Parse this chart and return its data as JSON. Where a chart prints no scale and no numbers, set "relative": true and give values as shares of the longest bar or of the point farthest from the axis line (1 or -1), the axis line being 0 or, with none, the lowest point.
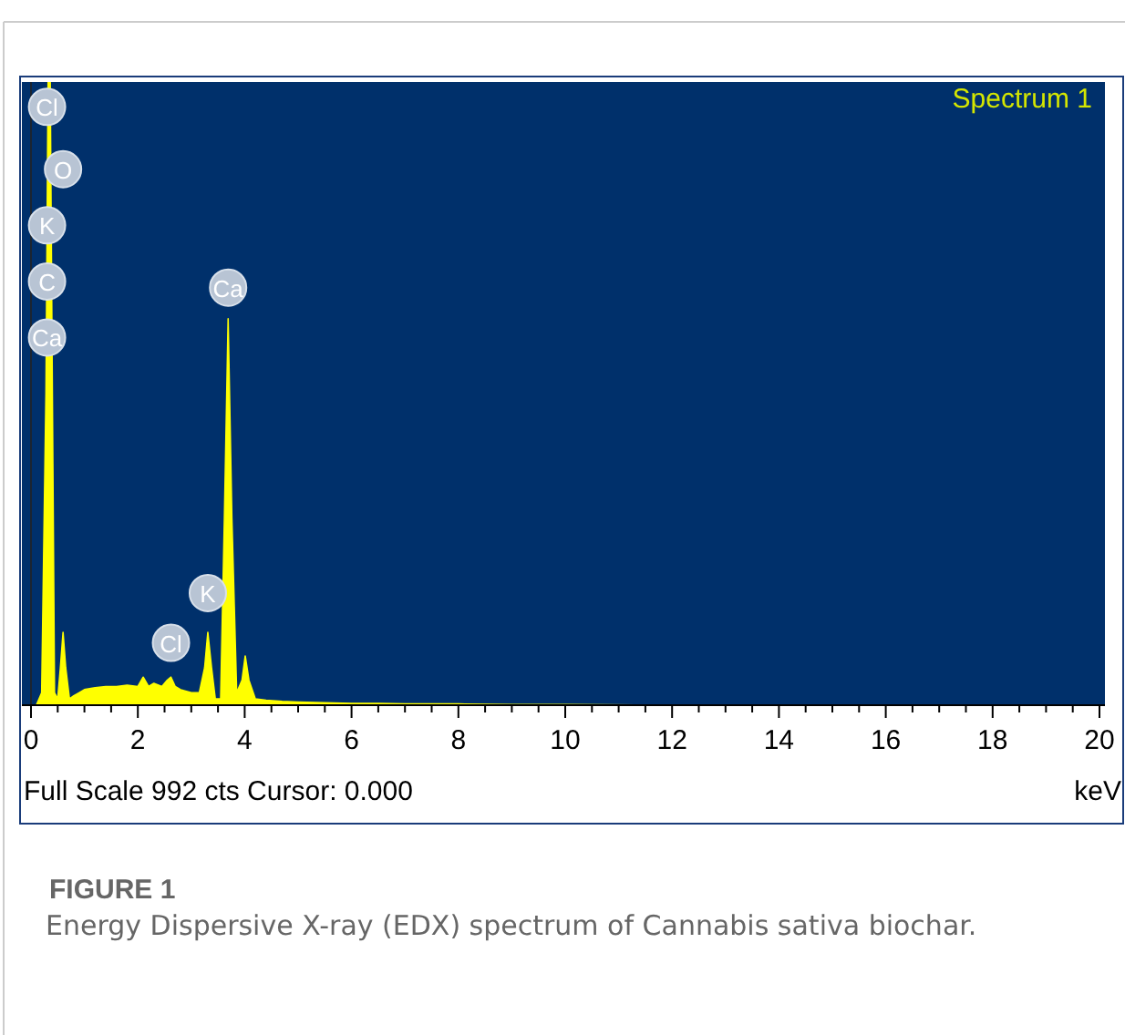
{
  "chart_data": {
    "type": "area",
    "title": "FIGURE 1",
    "subtitle": "Energy Dispersive X-ray (EDX) spectrum of Cannabis sativa biochar.",
    "xlabel": "keV",
    "relative": true,
    "legend": "top right",
    "grid": false,
    "x": [
      0,
      0.1,
      0.2,
      0.28,
      0.32,
      0.36,
      0.4,
      0.44,
      0.5,
      0.55,
      0.6,
      0.65,
      0.72,
      0.8,
      0.9,
      1.0,
      1.2,
      1.4,
      1.6,
      1.8,
      2.0,
      2.1,
      2.2,
      2.3,
      2.45,
      2.55,
      2.62,
      2.7,
      2.8,
      3.0,
      3.15,
      3.25,
      3.31,
      3.38,
      3.45,
      3.55,
      3.62,
      3.69,
      3.76,
      3.85,
      3.95,
      4.01,
      4.08,
      4.2,
      4.4,
      4.7,
      5.0,
      5.5,
      6,
      6.5,
      7,
      8,
      9,
      10,
      12,
      14,
      16,
      18,
      20
    ],
    "series": [
      {
        "name": "Spectrum 1",
        "color": "#ffff00",
        "values": [
          0,
          0,
          0.02,
          0.5,
          1,
          1,
          0.5,
          0.02,
          0.01,
          0.06,
          0.117,
          0.06,
          0.01,
          0.015,
          0.02,
          0.025,
          0.028,
          0.03,
          0.03,
          0.032,
          0.03,
          0.045,
          0.03,
          0.035,
          0.03,
          0.04,
          0.045,
          0.03,
          0.025,
          0.02,
          0.02,
          0.06,
          0.117,
          0.06,
          0.01,
          0.01,
          0.3,
          0.62,
          0.3,
          0.02,
          0.04,
          0.079,
          0.04,
          0.01,
          0.008,
          0.006,
          0.005,
          0.004,
          0.003,
          0.003,
          0.002,
          0.002,
          0.001,
          0.001,
          0,
          0,
          0,
          0,
          0
        ]
      }
    ],
    "xlim": [
      0,
      20
    ],
    "xticks": [
      0,
      {
        "value": 0.5,
        "label": null
      },
      {
        "value": 1,
        "label": null
      },
      {
        "value": 1.5,
        "label": null
      },
      2,
      {
        "value": 2.5,
        "label": null
      },
      {
        "value": 3,
        "label": null
      },
      {
        "value": 3.5,
        "label": null
      },
      4,
      {
        "value": 4.5,
        "label": null
      },
      {
        "value": 5,
        "label": null
      },
      {
        "value": 5.5,
        "label": null
      },
      6,
      {
        "value": 6.5,
        "label": null
      },
      {
        "value": 7,
        "label": null
      },
      {
        "value": 7.5,
        "label": null
      },
      8,
      {
        "value": 8.5,
        "label": null
      },
      {
        "value": 9,
        "label": null
      },
      {
        "value": 9.5,
        "label": null
      },
      10,
      {
        "value": 10.5,
        "label": null
      },
      {
        "value": 11,
        "label": null
      },
      {
        "value": 11.5,
        "label": null
      },
      12,
      {
        "value": 12.5,
        "label": null
      },
      {
        "value": 13,
        "label": null
      },
      {
        "value": 13.5,
        "label": null
      },
      14,
      {
        "value": 14.5,
        "label": null
      },
      {
        "value": 15,
        "label": null
      },
      {
        "value": 15.5,
        "label": null
      },
      16,
      {
        "value": 16.5,
        "label": null
      },
      {
        "value": 17,
        "label": null
      },
      {
        "value": 17.5,
        "label": null
      },
      18,
      {
        "value": 18.5,
        "label": null
      },
      {
        "value": 19,
        "label": null
      },
      {
        "value": 19.5,
        "label": null
      },
      20
    ],
    "annotations": [
      {
        "text": "Cl",
        "x": 0.3,
        "y": 0.96
      },
      {
        "text": "O",
        "x": 0.6,
        "y": 0.86
      },
      {
        "text": "K",
        "x": 0.3,
        "y": 0.77
      },
      {
        "text": "C",
        "x": 0.3,
        "y": 0.68
      },
      {
        "text": "Ca",
        "x": 0.3,
        "y": 0.59
      },
      {
        "text": "Ca",
        "x": 3.69,
        "y": 0.67
      },
      {
        "text": "K",
        "x": 3.31,
        "y": 0.18
      },
      {
        "text": "Cl",
        "x": 2.62,
        "y": 0.1
      },
      "Full Scale 992 cts Cursor: 0.000"
    ]
  }
}
